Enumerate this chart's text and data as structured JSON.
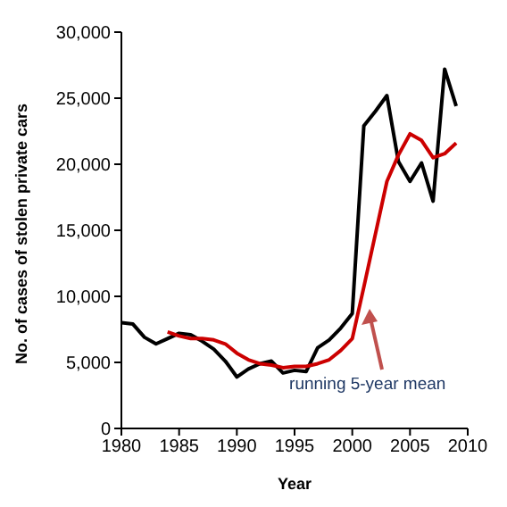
{
  "chart_data": {
    "type": "line",
    "xlabel": "Year",
    "ylabel": "No. of cases of stolen private cars",
    "x": [
      1980,
      1981,
      1982,
      1983,
      1984,
      1985,
      1986,
      1987,
      1988,
      1989,
      1990,
      1991,
      1992,
      1993,
      1994,
      1995,
      1996,
      1997,
      1998,
      1999,
      2000,
      2001,
      2002,
      2003,
      2004,
      2005,
      2006,
      2007,
      2008,
      2009
    ],
    "series": [
      {
        "color": "#000000",
        "values": [
          8000,
          7900,
          6900,
          6400,
          6800,
          7200,
          7100,
          6600,
          6000,
          5100,
          3900,
          4500,
          4900,
          5100,
          4200,
          4400,
          4300,
          6100,
          6700,
          7600,
          8700,
          22900,
          24000,
          25200,
          20200,
          18700,
          20100,
          17200,
          27200,
          24400
        ]
      },
      {
        "color": "#cc0000",
        "values": [
          null,
          null,
          null,
          null,
          7300,
          7000,
          6800,
          6800,
          6700,
          6400,
          5700,
          5200,
          4900,
          4800,
          4600,
          4700,
          4700,
          4900,
          5200,
          5900,
          6800,
          10700,
          14700,
          18700,
          20700,
          22300,
          21800,
          20500,
          20800,
          21600
        ]
      }
    ],
    "xlim": [
      1980,
      2010
    ],
    "xticks": [
      1980,
      1985,
      1990,
      1995,
      2000,
      2005,
      2010
    ],
    "ylim": [
      0,
      30000
    ],
    "yticks": [
      0,
      {
        "value": 5000,
        "label": "5,000"
      },
      {
        "value": 10000,
        "label": "10,000"
      },
      {
        "value": 15000,
        "label": "15,000"
      },
      {
        "value": 20000,
        "label": "20,000"
      },
      {
        "value": 25000,
        "label": "25,000"
      },
      {
        "value": 30000,
        "label": "30,000"
      }
    ],
    "grid": false,
    "legend": false,
    "marker": "none",
    "line_style": "solid",
    "annotations": [
      {
        "text": "running 5-year mean",
        "x": 2001.5,
        "y": 9000
      }
    ]
  }
}
